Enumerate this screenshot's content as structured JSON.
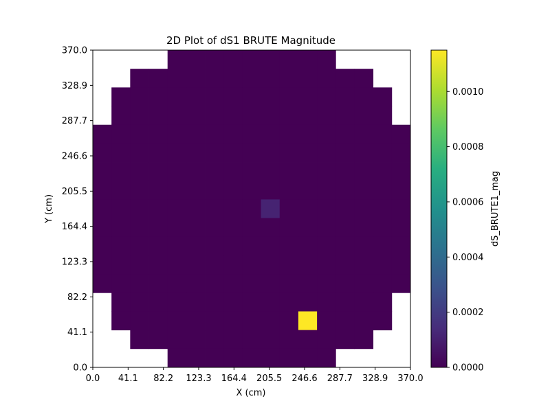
{
  "chart_data": {
    "type": "heatmap",
    "title": "2D Plot of dS1 BRUTE Magnitude",
    "xlabel": "X (cm)",
    "ylabel": "Y (cm)",
    "xlim": [
      0,
      370
    ],
    "ylim": [
      0,
      370
    ],
    "x_ticks": [
      "0.0",
      "41.1",
      "82.2",
      "123.3",
      "164.4",
      "205.5",
      "246.6",
      "287.7",
      "328.9",
      "370.0"
    ],
    "y_ticks": [
      "0.0",
      "41.1",
      "82.2",
      "123.3",
      "164.4",
      "205.5",
      "246.6",
      "287.7",
      "328.9",
      "370.0"
    ],
    "grid": false,
    "colormap": "viridis",
    "grid_size": [
      17,
      17
    ],
    "row_order": "top-to-bottom",
    "cell_value_default": 0.0,
    "valid_row_ranges": [
      [
        4,
        12
      ],
      [
        2,
        14
      ],
      [
        1,
        15
      ],
      [
        1,
        15
      ],
      [
        0,
        16
      ],
      [
        0,
        16
      ],
      [
        0,
        16
      ],
      [
        0,
        16
      ],
      [
        0,
        16
      ],
      [
        0,
        16
      ],
      [
        0,
        16
      ],
      [
        0,
        16
      ],
      [
        0,
        16
      ],
      [
        1,
        15
      ],
      [
        1,
        15
      ],
      [
        2,
        14
      ],
      [
        4,
        12
      ]
    ],
    "highlight_cells": [
      {
        "row": 8,
        "col": 9,
        "value": 0.00011
      },
      {
        "row": 14,
        "col": 11,
        "value": 0.00115
      }
    ],
    "colorbar": {
      "label": "dS_BRUTE1_mag",
      "min": 0.0,
      "max": 0.00115,
      "ticks": [
        "0.0000",
        "0.0002",
        "0.0004",
        "0.0006",
        "0.0008",
        "0.0010"
      ],
      "tick_values": [
        0.0,
        0.0002,
        0.0004,
        0.0006,
        0.0008,
        0.001
      ]
    },
    "colors": {
      "low": "#440154",
      "high": "#fde725"
    }
  }
}
